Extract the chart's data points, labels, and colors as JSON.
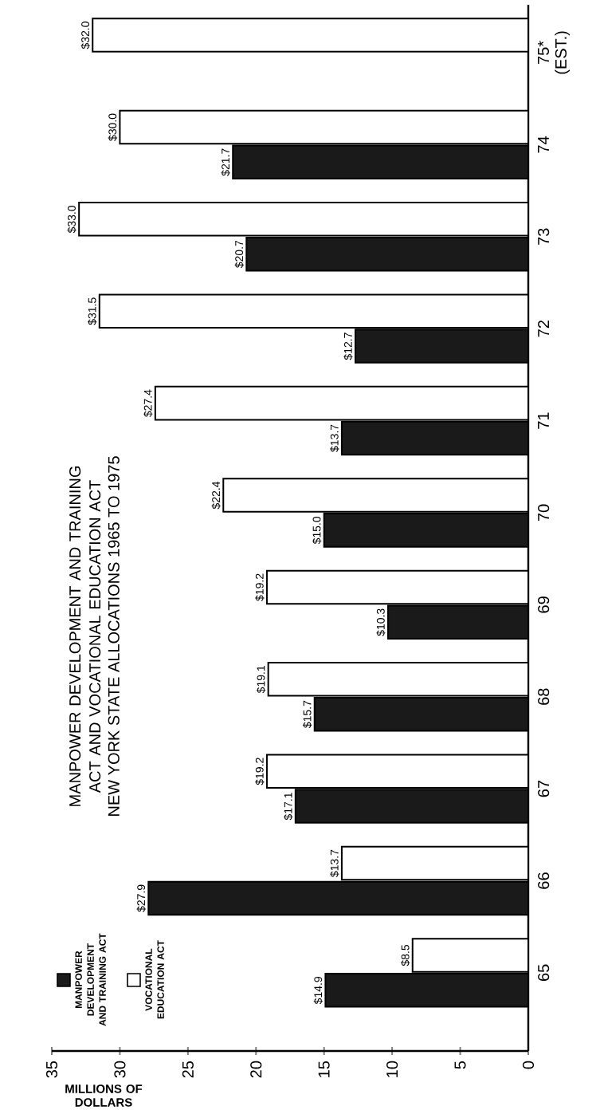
{
  "chart_data": {
    "type": "bar",
    "orientation": "horizontal",
    "title": "MANPOWER DEVELOPMENT AND TRAINING ACT AND VOCATIONAL EDUCATION ACT",
    "subtitle": "NEW YORK STATE ALLOCATIONS 1965 TO 1975",
    "xlabel": "MILLIONS OF DOLLARS",
    "categories": [
      "75* (EST.)",
      "74",
      "73",
      "72",
      "71",
      "70",
      "69",
      "68",
      "67",
      "66",
      "65"
    ],
    "series": [
      {
        "name": "MANPOWER DEVELOPMENT AND TRAINING ACT",
        "color": "#1a1a1a",
        "values": [
          null,
          21.7,
          20.7,
          12.7,
          13.7,
          15.0,
          10.3,
          15.7,
          17.1,
          27.9,
          14.9
        ],
        "value_labels": [
          null,
          "$21.7",
          "$20.7",
          "$12.7",
          "$13.7",
          "$15.0",
          "$10.3",
          "$15.7",
          "$17.1",
          "$27.9",
          "$14.9"
        ]
      },
      {
        "name": "VOCATIONAL EDUCATION ACT",
        "color": "#ffffff",
        "values": [
          32.0,
          30.0,
          33.0,
          31.5,
          27.4,
          22.4,
          19.2,
          19.1,
          19.2,
          13.7,
          8.5
        ],
        "value_labels": [
          "$32.0",
          "$30.0",
          "$33.0",
          "$31.5",
          "$27.4",
          "$22.4",
          "$19.2",
          "$19.1",
          "$19.2",
          "$13.7",
          "$8.5"
        ]
      }
    ],
    "xlim": [
      35,
      0
    ],
    "xticks": [
      0,
      5,
      10,
      15,
      20,
      25,
      30,
      35
    ],
    "legend": "bottom left"
  }
}
